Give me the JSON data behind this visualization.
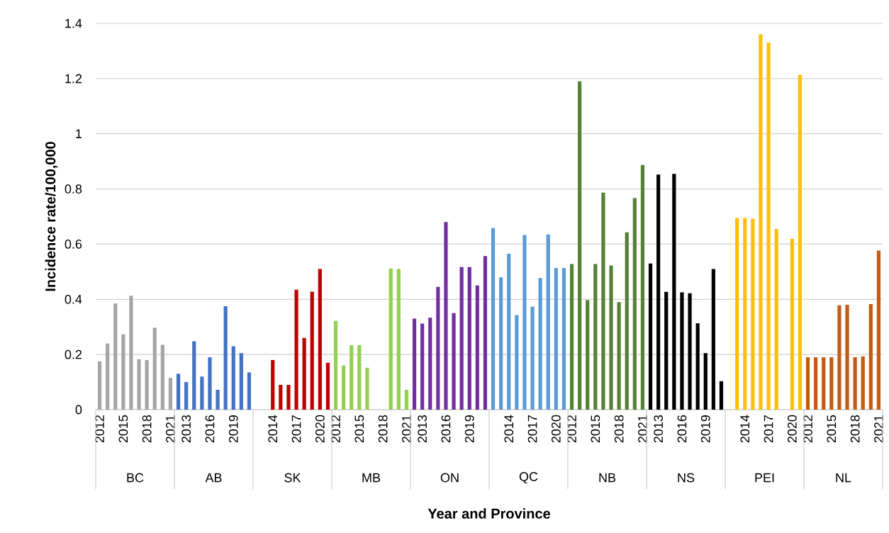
{
  "chart_data": {
    "type": "bar",
    "xlabel": "Year and Province",
    "ylabel": "Incidence rate/100,000",
    "categories": [
      "2012",
      null,
      null,
      "2015",
      null,
      null,
      "2018",
      null,
      null,
      "2021",
      null,
      "2013",
      null,
      null,
      "2016",
      null,
      null,
      "2019",
      null,
      null,
      null,
      null,
      "2014",
      null,
      null,
      "2017",
      null,
      null,
      "2020",
      null,
      "2012",
      null,
      null,
      "2015",
      null,
      null,
      "2018",
      null,
      null,
      "2021",
      null,
      "2013",
      null,
      null,
      "2016",
      null,
      null,
      "2019",
      null,
      null,
      null,
      null,
      "2014",
      null,
      null,
      "2017",
      null,
      null,
      "2020",
      null,
      "2012",
      null,
      null,
      "2015",
      null,
      null,
      "2018",
      null,
      null,
      "2021",
      null,
      "2013",
      null,
      null,
      "2016",
      null,
      null,
      "2019",
      null,
      null,
      null,
      null,
      "2014",
      null,
      null,
      "2017",
      null,
      null,
      "2020",
      null,
      "2012",
      null,
      null,
      "2015",
      null,
      null,
      "2018",
      null,
      null,
      "2021"
    ],
    "series": [
      {
        "color": "#a5a5a5",
        "values": [
          0.175,
          0.24,
          0.385,
          0.273,
          0.413,
          0.183,
          0.18,
          0.297,
          0.235,
          0.115,
          null,
          null,
          null,
          null,
          null,
          null,
          null,
          null,
          null,
          null,
          null,
          null,
          null,
          null,
          null,
          null,
          null,
          null,
          null,
          null,
          null,
          null,
          null,
          null,
          null,
          null,
          null,
          null,
          null,
          null,
          null,
          null,
          null,
          null,
          null,
          null,
          null,
          null,
          null,
          null,
          null,
          null,
          null,
          null,
          null,
          null,
          null,
          null,
          null,
          null,
          null,
          null,
          null,
          null,
          null,
          null,
          null,
          null,
          null,
          null,
          null,
          null,
          null,
          null,
          null,
          null,
          null,
          null,
          null,
          null,
          null,
          null,
          null,
          null,
          null,
          null,
          null,
          null,
          null,
          null,
          null,
          null,
          null,
          null,
          null,
          null,
          null,
          null,
          null,
          null
        ]
      },
      {
        "color": "#4472c4",
        "values": [
          null,
          null,
          null,
          null,
          null,
          null,
          null,
          null,
          null,
          null,
          0.13,
          0.1,
          0.248,
          0.12,
          0.19,
          0.072,
          0.375,
          0.23,
          0.205,
          0.135,
          null,
          null,
          null,
          null,
          null,
          null,
          null,
          null,
          null,
          null,
          null,
          null,
          null,
          null,
          null,
          null,
          null,
          null,
          null,
          null,
          null,
          null,
          null,
          null,
          null,
          null,
          null,
          null,
          null,
          null,
          null,
          null,
          null,
          null,
          null,
          null,
          null,
          null,
          null,
          null,
          null,
          null,
          null,
          null,
          null,
          null,
          null,
          null,
          null,
          null,
          null,
          null,
          null,
          null,
          null,
          null,
          null,
          null,
          null,
          null,
          null,
          null,
          null,
          null,
          null,
          null,
          null,
          null,
          null,
          null,
          null,
          null,
          null,
          null,
          null,
          null,
          null,
          null,
          null,
          null
        ]
      },
      {
        "color": "#c00000",
        "values": [
          null,
          null,
          null,
          null,
          null,
          null,
          null,
          null,
          null,
          null,
          null,
          null,
          null,
          null,
          null,
          null,
          null,
          null,
          null,
          null,
          null,
          null,
          0.18,
          0.09,
          0.09,
          0.435,
          0.26,
          0.428,
          0.51,
          0.17,
          null,
          null,
          null,
          null,
          null,
          null,
          null,
          null,
          null,
          null,
          null,
          null,
          null,
          null,
          null,
          null,
          null,
          null,
          null,
          null,
          null,
          null,
          null,
          null,
          null,
          null,
          null,
          null,
          null,
          null,
          null,
          null,
          null,
          null,
          null,
          null,
          null,
          null,
          null,
          null,
          null,
          null,
          null,
          null,
          null,
          null,
          null,
          null,
          null,
          null,
          null,
          null,
          null,
          null,
          null,
          null,
          null,
          null,
          null,
          null,
          null,
          null,
          null,
          null,
          null,
          null,
          null,
          null,
          null,
          null
        ]
      },
      {
        "color": "#92d050",
        "values": [
          null,
          null,
          null,
          null,
          null,
          null,
          null,
          null,
          null,
          null,
          null,
          null,
          null,
          null,
          null,
          null,
          null,
          null,
          null,
          null,
          null,
          null,
          null,
          null,
          null,
          null,
          null,
          null,
          null,
          null,
          0.322,
          0.16,
          0.234,
          0.234,
          0.152,
          null,
          null,
          0.512,
          0.51,
          0.072,
          null,
          null,
          null,
          null,
          null,
          null,
          null,
          null,
          null,
          null,
          null,
          null,
          null,
          null,
          null,
          null,
          null,
          null,
          null,
          null,
          null,
          null,
          null,
          null,
          null,
          null,
          null,
          null,
          null,
          null,
          null,
          null,
          null,
          null,
          null,
          null,
          null,
          null,
          null,
          null,
          null,
          null,
          null,
          null,
          null,
          null,
          null,
          null,
          null,
          null,
          null,
          null,
          null,
          null,
          null,
          null,
          null,
          null,
          null,
          null
        ]
      },
      {
        "color": "#7030a0",
        "values": [
          null,
          null,
          null,
          null,
          null,
          null,
          null,
          null,
          null,
          null,
          null,
          null,
          null,
          null,
          null,
          null,
          null,
          null,
          null,
          null,
          null,
          null,
          null,
          null,
          null,
          null,
          null,
          null,
          null,
          null,
          null,
          null,
          null,
          null,
          null,
          null,
          null,
          null,
          null,
          null,
          0.33,
          0.312,
          0.333,
          0.445,
          0.68,
          0.35,
          0.517,
          0.517,
          0.45,
          0.557,
          null,
          null,
          null,
          null,
          null,
          null,
          null,
          null,
          null,
          null,
          null,
          null,
          null,
          null,
          null,
          null,
          null,
          null,
          null,
          null,
          null,
          null,
          null,
          null,
          null,
          null,
          null,
          null,
          null,
          null,
          null,
          null,
          null,
          null,
          null,
          null,
          null,
          null,
          null,
          null,
          null,
          null,
          null,
          null,
          null,
          null,
          null,
          null,
          null,
          null
        ]
      },
      {
        "color": "#5b9bd5",
        "values": [
          null,
          null,
          null,
          null,
          null,
          null,
          null,
          null,
          null,
          null,
          null,
          null,
          null,
          null,
          null,
          null,
          null,
          null,
          null,
          null,
          null,
          null,
          null,
          null,
          null,
          null,
          null,
          null,
          null,
          null,
          null,
          null,
          null,
          null,
          null,
          null,
          null,
          null,
          null,
          null,
          null,
          null,
          null,
          null,
          null,
          null,
          null,
          null,
          null,
          null,
          0.658,
          0.48,
          0.565,
          0.343,
          0.633,
          0.373,
          0.477,
          0.635,
          0.513,
          0.513,
          null,
          null,
          null,
          null,
          null,
          null,
          null,
          null,
          null,
          null,
          null,
          null,
          null,
          null,
          null,
          null,
          null,
          null,
          null,
          null,
          null,
          null,
          null,
          null,
          null,
          null,
          null,
          null,
          null,
          null,
          null,
          null,
          null,
          null,
          null,
          null,
          null,
          null,
          null,
          null
        ]
      },
      {
        "color": "#548235",
        "values": [
          null,
          null,
          null,
          null,
          null,
          null,
          null,
          null,
          null,
          null,
          null,
          null,
          null,
          null,
          null,
          null,
          null,
          null,
          null,
          null,
          null,
          null,
          null,
          null,
          null,
          null,
          null,
          null,
          null,
          null,
          null,
          null,
          null,
          null,
          null,
          null,
          null,
          null,
          null,
          null,
          null,
          null,
          null,
          null,
          null,
          null,
          null,
          null,
          null,
          null,
          null,
          null,
          null,
          null,
          null,
          null,
          null,
          null,
          null,
          null,
          0.528,
          1.19,
          0.397,
          0.528,
          0.787,
          0.522,
          0.39,
          0.643,
          0.767,
          0.887,
          null,
          null,
          null,
          null,
          null,
          null,
          null,
          null,
          null,
          null,
          null,
          null,
          null,
          null,
          null,
          null,
          null,
          null,
          null,
          null,
          null,
          null,
          null,
          null,
          null,
          null,
          null,
          null,
          null,
          null
        ]
      },
      {
        "color": "#000000",
        "values": [
          null,
          null,
          null,
          null,
          null,
          null,
          null,
          null,
          null,
          null,
          null,
          null,
          null,
          null,
          null,
          null,
          null,
          null,
          null,
          null,
          null,
          null,
          null,
          null,
          null,
          null,
          null,
          null,
          null,
          null,
          null,
          null,
          null,
          null,
          null,
          null,
          null,
          null,
          null,
          null,
          null,
          null,
          null,
          null,
          null,
          null,
          null,
          null,
          null,
          null,
          null,
          null,
          null,
          null,
          null,
          null,
          null,
          null,
          null,
          null,
          null,
          null,
          null,
          null,
          null,
          null,
          null,
          null,
          null,
          null,
          0.53,
          0.852,
          0.427,
          0.855,
          0.425,
          0.422,
          0.313,
          0.205,
          0.51,
          0.103,
          null,
          null,
          null,
          null,
          null,
          null,
          null,
          null,
          null,
          null,
          null,
          null,
          null,
          null,
          null,
          null,
          null,
          null,
          null,
          null
        ]
      },
      {
        "color": "#ffc000",
        "values": [
          null,
          null,
          null,
          null,
          null,
          null,
          null,
          null,
          null,
          null,
          null,
          null,
          null,
          null,
          null,
          null,
          null,
          null,
          null,
          null,
          null,
          null,
          null,
          null,
          null,
          null,
          null,
          null,
          null,
          null,
          null,
          null,
          null,
          null,
          null,
          null,
          null,
          null,
          null,
          null,
          null,
          null,
          null,
          null,
          null,
          null,
          null,
          null,
          null,
          null,
          null,
          null,
          null,
          null,
          null,
          null,
          null,
          null,
          null,
          null,
          null,
          null,
          null,
          null,
          null,
          null,
          null,
          null,
          null,
          null,
          null,
          null,
          null,
          null,
          null,
          null,
          null,
          null,
          null,
          null,
          null,
          0.695,
          0.695,
          0.692,
          1.36,
          1.33,
          0.655,
          null,
          0.62,
          1.213,
          null,
          null,
          null,
          null,
          null,
          null,
          null,
          null,
          null,
          null
        ]
      },
      {
        "color": "#c55a11",
        "values": [
          null,
          null,
          null,
          null,
          null,
          null,
          null,
          null,
          null,
          null,
          null,
          null,
          null,
          null,
          null,
          null,
          null,
          null,
          null,
          null,
          null,
          null,
          null,
          null,
          null,
          null,
          null,
          null,
          null,
          null,
          null,
          null,
          null,
          null,
          null,
          null,
          null,
          null,
          null,
          null,
          null,
          null,
          null,
          null,
          null,
          null,
          null,
          null,
          null,
          null,
          null,
          null,
          null,
          null,
          null,
          null,
          null,
          null,
          null,
          null,
          null,
          null,
          null,
          null,
          null,
          null,
          null,
          null,
          null,
          null,
          null,
          null,
          null,
          null,
          null,
          null,
          null,
          null,
          null,
          null,
          null,
          null,
          null,
          null,
          null,
          null,
          null,
          null,
          null,
          null,
          0.19,
          0.19,
          0.19,
          0.19,
          0.378,
          0.38,
          0.19,
          0.193,
          0.383,
          0.577
        ]
      }
    ],
    "ylim": [
      0,
      1.4
    ],
    "yticks": [
      0,
      0.2,
      0.4,
      0.6,
      0.8,
      1,
      1.2,
      1.4
    ],
    "grid": "y",
    "annotations": [
      "BC",
      "AB",
      "SK",
      "MB",
      "ON",
      "QC",
      "NB",
      "NS",
      "PEI",
      "NL"
    ]
  }
}
